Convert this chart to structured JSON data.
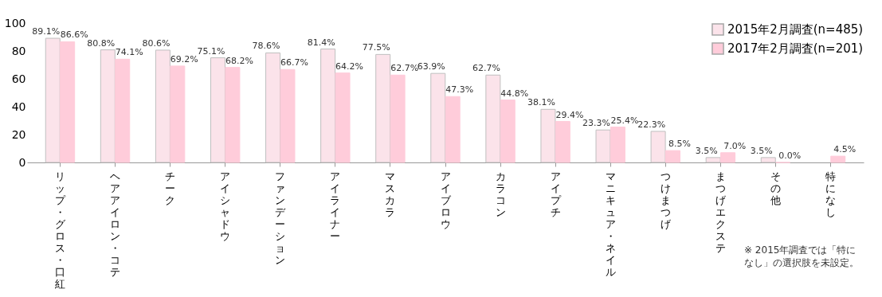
{
  "chart_data": {
    "type": "bar",
    "categories": [
      "リップ・グロス・口紅",
      "ヘアアイロン・コテ",
      "チーク",
      "アイシャドウ",
      "ファンデーション",
      "アイライナー",
      "マスカラ",
      "アイブロウ",
      "カラコン",
      "アイプチ",
      "マニキュア・ネイル",
      "つけまつげ",
      "まつげエクステ",
      "その他",
      "特になし"
    ],
    "series": [
      {
        "name": "2015年2月調査(n=485)",
        "color": "#fbe3ea",
        "values": [
          89.1,
          80.8,
          80.6,
          75.1,
          78.6,
          81.4,
          77.5,
          63.9,
          62.7,
          38.1,
          23.3,
          22.3,
          3.5,
          3.5,
          null
        ],
        "value_labels": [
          "89.1%",
          "80.8%",
          "80.6%",
          "75.1%",
          "78.6%",
          "81.4%",
          "77.5%",
          "63.9%",
          "62.7%",
          "38.1%",
          "23.3%",
          "22.3%",
          "3.5%",
          "3.5%",
          null
        ]
      },
      {
        "name": "2017年2月調査(n=201)",
        "color": "#ffccda",
        "values": [
          86.6,
          74.1,
          69.2,
          68.2,
          66.7,
          64.2,
          62.7,
          47.3,
          44.8,
          29.4,
          25.4,
          8.5,
          7.0,
          0.0,
          4.5
        ],
        "value_labels": [
          "86.6%",
          "74.1%",
          "69.2%",
          "68.2%",
          "66.7%",
          "64.2%",
          "62.7%",
          "47.3%",
          "44.8%",
          "29.4%",
          "25.4%",
          "8.5%",
          "7.0%",
          "0.0%",
          "4.5%"
        ]
      }
    ],
    "ylim": [
      0,
      100
    ],
    "yticks": [
      0,
      20,
      40,
      60,
      80,
      100
    ],
    "grid": false,
    "legend": "top right",
    "annotations": [
      "※ 2015年調査では「特になし」の選択肢を未設定。"
    ]
  }
}
